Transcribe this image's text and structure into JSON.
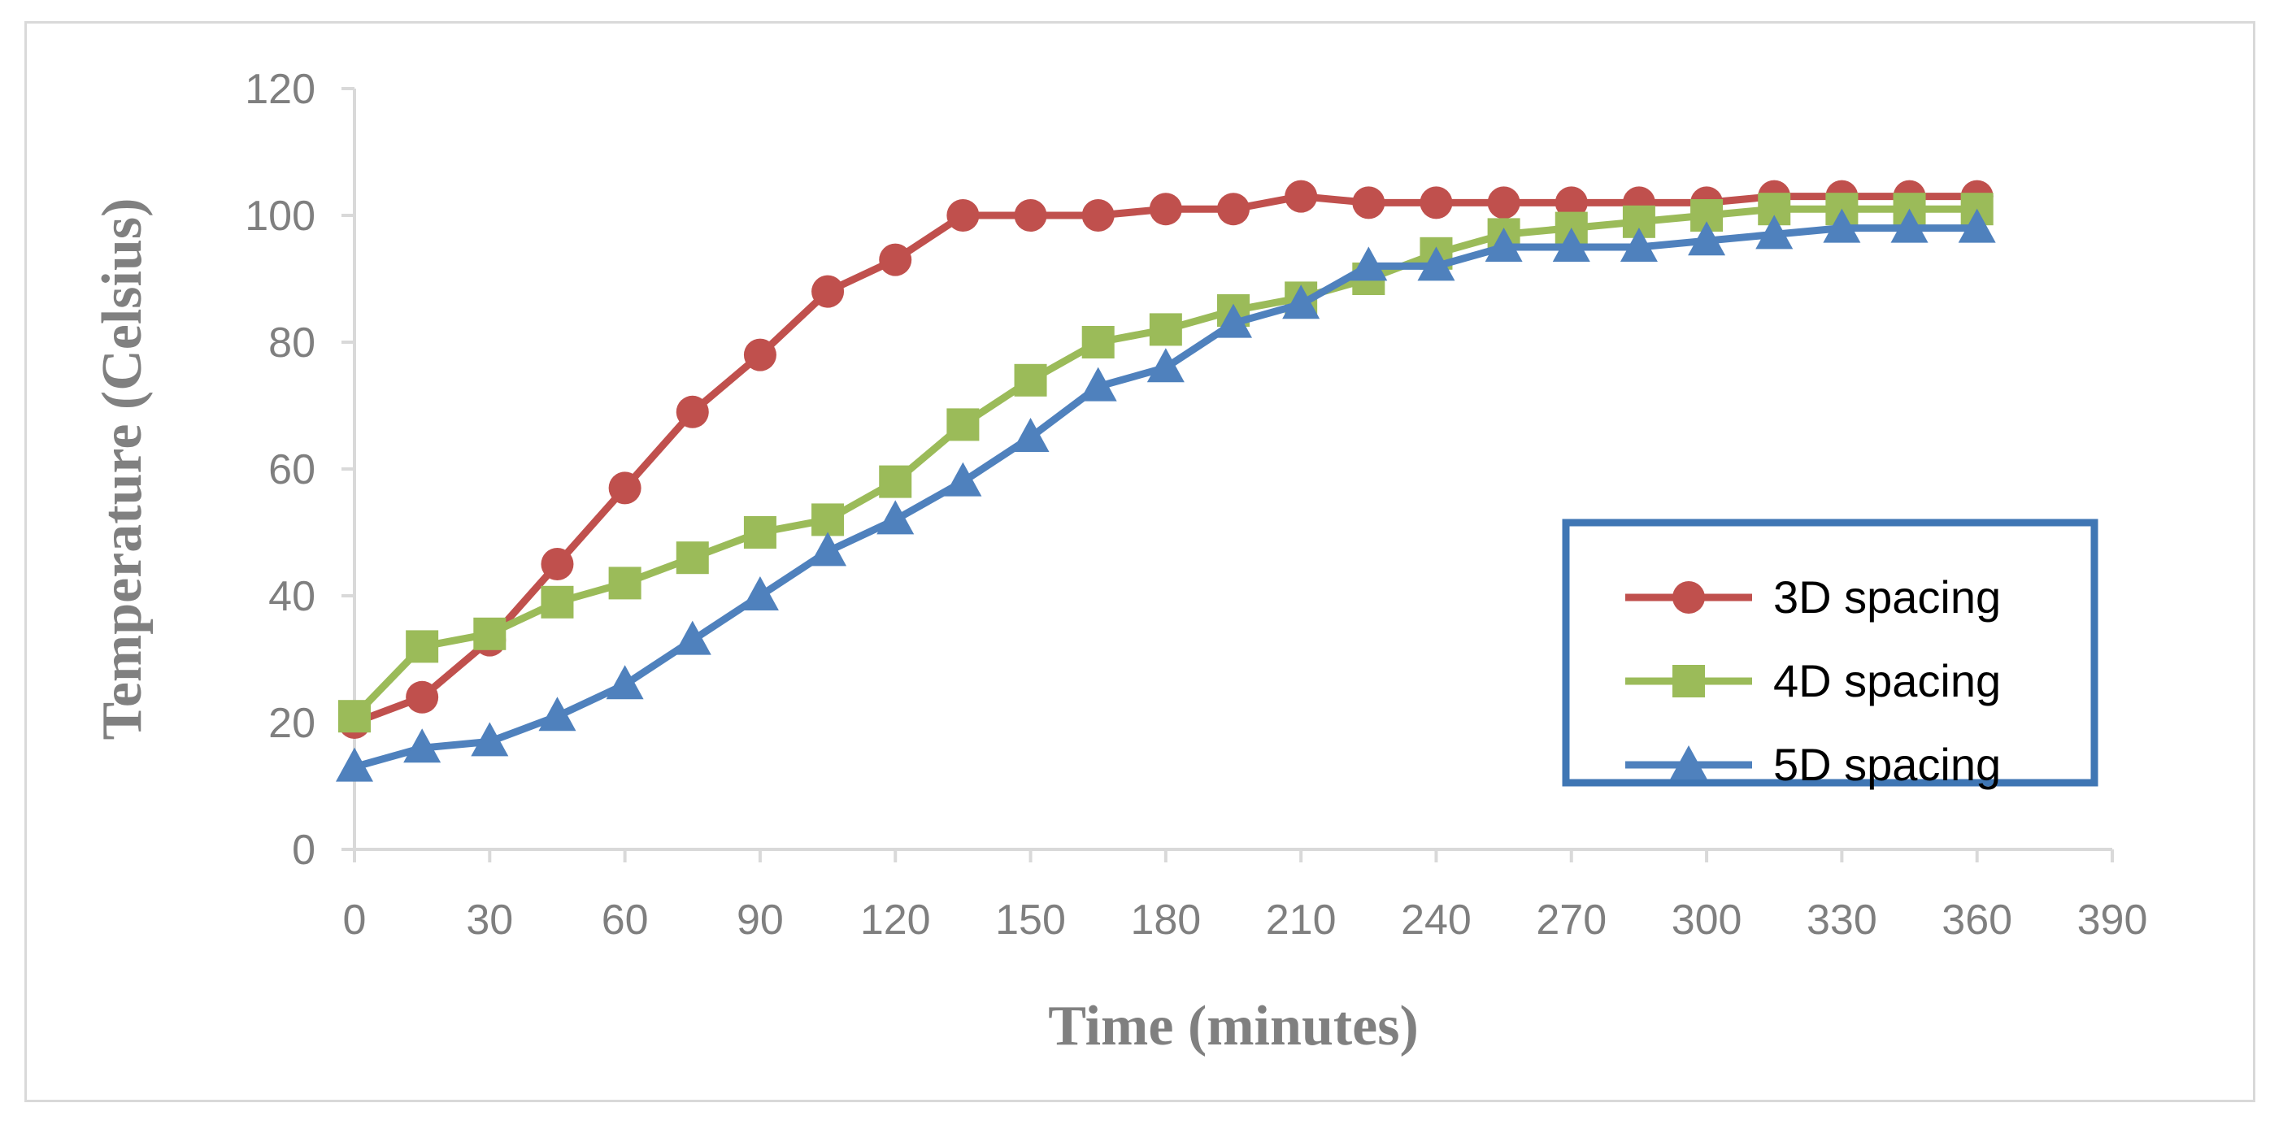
{
  "chart_data": {
    "type": "line",
    "xlabel": "Time (minutes)",
    "ylabel": "Temperature (Celsius)",
    "xlim": [
      0,
      390
    ],
    "ylim": [
      0,
      120
    ],
    "x_ticks": [
      0,
      30,
      60,
      90,
      120,
      150,
      180,
      210,
      240,
      270,
      300,
      330,
      360,
      390
    ],
    "y_ticks": [
      0,
      20,
      40,
      60,
      80,
      100,
      120
    ],
    "grid": false,
    "legend_position": "right",
    "x": [
      0,
      15,
      30,
      45,
      60,
      75,
      90,
      105,
      120,
      135,
      150,
      165,
      180,
      195,
      210,
      225,
      240,
      255,
      270,
      285,
      300,
      315,
      330,
      345,
      360
    ],
    "series": [
      {
        "name": "3D spacing",
        "color": "#c0504d",
        "marker": "circle",
        "values": [
          20,
          24,
          33,
          45,
          57,
          69,
          78,
          88,
          93,
          100,
          100,
          100,
          101,
          101,
          103,
          102,
          102,
          102,
          102,
          102,
          102,
          103,
          103,
          103,
          103
        ]
      },
      {
        "name": "4D spacing",
        "color": "#9bbb59",
        "marker": "square",
        "values": [
          21,
          32,
          34,
          39,
          42,
          46,
          50,
          52,
          58,
          67,
          74,
          80,
          82,
          85,
          87,
          90,
          94,
          97,
          98,
          99,
          100,
          101,
          101,
          101,
          101
        ]
      },
      {
        "name": "5D spacing",
        "color": "#4f81bd",
        "marker": "triangle",
        "values": [
          13,
          16,
          17,
          21,
          26,
          33,
          40,
          47,
          52,
          58,
          65,
          73,
          76,
          83,
          86,
          92,
          92,
          95,
          95,
          95,
          96,
          97,
          98,
          98,
          98
        ]
      }
    ],
    "axis_color": "#d9d9d9",
    "legend_border_color": "#3f76b4"
  }
}
